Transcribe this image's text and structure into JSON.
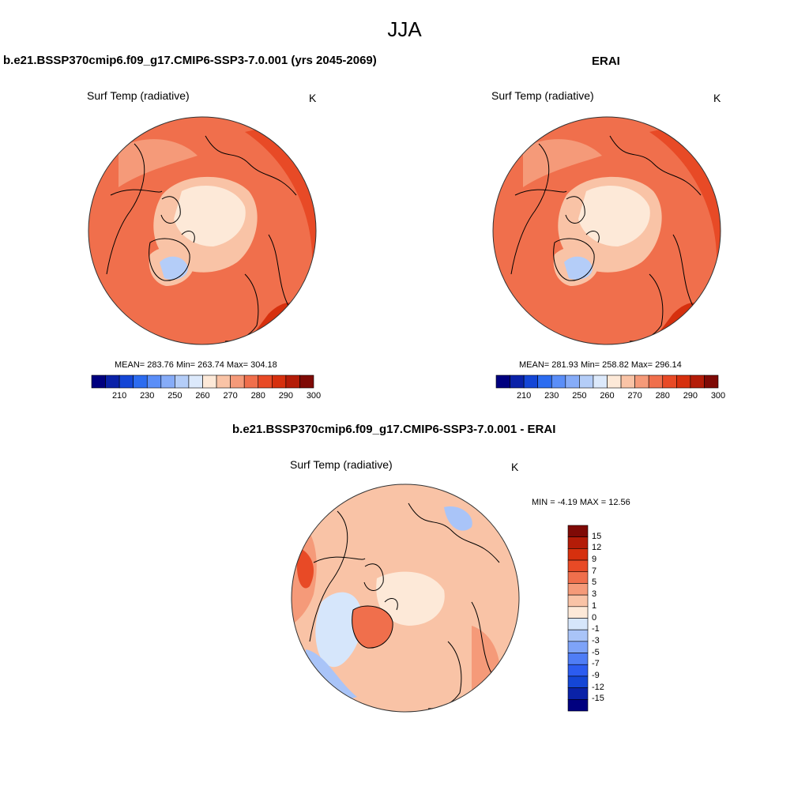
{
  "season": "JJA",
  "colors": {
    "seq": [
      "#00007f",
      "#0a22a8",
      "#1446d6",
      "#2c6cf0",
      "#5a8ef8",
      "#86acf8",
      "#b4cdf8",
      "#dce9fb",
      "#fde9d8",
      "#f9c3a6",
      "#f59a79",
      "#f06f4c",
      "#e84a26",
      "#d6300e",
      "#b41c08",
      "#7f0a06"
    ],
    "diff": [
      "#00007f",
      "#0a22a8",
      "#1446d6",
      "#2c5cf0",
      "#4f7df6",
      "#7ea3f8",
      "#a9c4f8",
      "#d6e6fb",
      "#fde9d8",
      "#f9c3a6",
      "#f59a79",
      "#f06f4c",
      "#e84a26",
      "#d6300e",
      "#b41c08",
      "#7f0a06"
    ],
    "land_outline": "#000000"
  },
  "panels": [
    {
      "title": "b.e21.BSSP370cmip6.f09_g17.CMIP6-SSP3-7.0.001 (yrs 2045-2069)",
      "variable": "Surf Temp (radiative)",
      "units": "K",
      "stats": "MEAN= 283.76  Min= 263.74  Max= 304.18",
      "ticks": [
        "210",
        "230",
        "250",
        "260",
        "270",
        "280",
        "290",
        "300"
      ]
    },
    {
      "title": "ERAI",
      "variable": "Surf Temp (radiative)",
      "units": "K",
      "stats": "MEAN= 281.93  Min= 258.82  Max= 296.14",
      "ticks": [
        "210",
        "230",
        "250",
        "260",
        "270",
        "280",
        "290",
        "300"
      ]
    }
  ],
  "diff_panel": {
    "title": "b.e21.BSSP370cmip6.f09_g17.CMIP6-SSP3-7.0.001 - ERAI",
    "variable": "Surf Temp (radiative)",
    "units": "K",
    "stats": "MIN =  -4.19 MAX =  12.56",
    "ticks": [
      "15",
      "12",
      "9",
      "7",
      "5",
      "3",
      "1",
      "0",
      "-1",
      "-3",
      "-5",
      "-7",
      "-9",
      "-12",
      "-15"
    ]
  }
}
